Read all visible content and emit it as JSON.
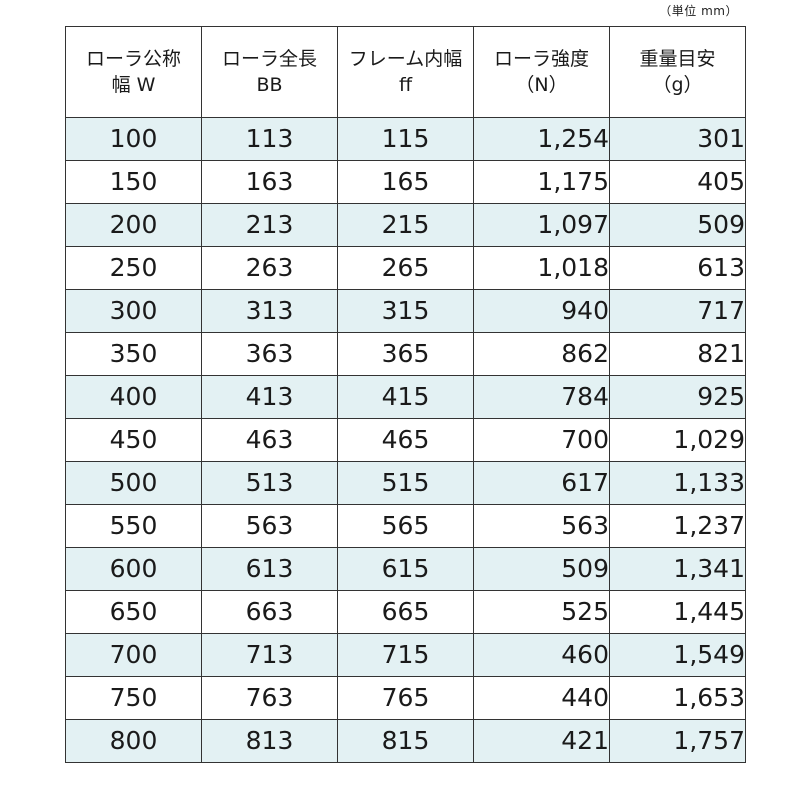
{
  "unit_note": "（単位 mm）",
  "headers": [
    {
      "line1": "ローラ公称",
      "line2": "幅 W"
    },
    {
      "line1": "ローラ全長",
      "line2": "BB"
    },
    {
      "line1": "フレーム内幅",
      "line2": "ff"
    },
    {
      "line1": "ローラ強度",
      "line2": "（N）"
    },
    {
      "line1": "重量目安",
      "line2": "（g）"
    }
  ],
  "rows": [
    [
      "100",
      "113",
      "115",
      "1,254",
      "301"
    ],
    [
      "150",
      "163",
      "165",
      "1,175",
      "405"
    ],
    [
      "200",
      "213",
      "215",
      "1,097",
      "509"
    ],
    [
      "250",
      "263",
      "265",
      "1,018",
      "613"
    ],
    [
      "300",
      "313",
      "315",
      "940",
      "717"
    ],
    [
      "350",
      "363",
      "365",
      "862",
      "821"
    ],
    [
      "400",
      "413",
      "415",
      "784",
      "925"
    ],
    [
      "450",
      "463",
      "465",
      "700",
      "1,029"
    ],
    [
      "500",
      "513",
      "515",
      "617",
      "1,133"
    ],
    [
      "550",
      "563",
      "565",
      "563",
      "1,237"
    ],
    [
      "600",
      "613",
      "615",
      "509",
      "1,341"
    ],
    [
      "650",
      "663",
      "665",
      "525",
      "1,445"
    ],
    [
      "700",
      "713",
      "715",
      "460",
      "1,549"
    ],
    [
      "750",
      "763",
      "765",
      "440",
      "1,653"
    ],
    [
      "800",
      "813",
      "815",
      "421",
      "1,757"
    ]
  ],
  "colors": {
    "row_stripe": "#e3f1f3",
    "border": "#333333"
  }
}
